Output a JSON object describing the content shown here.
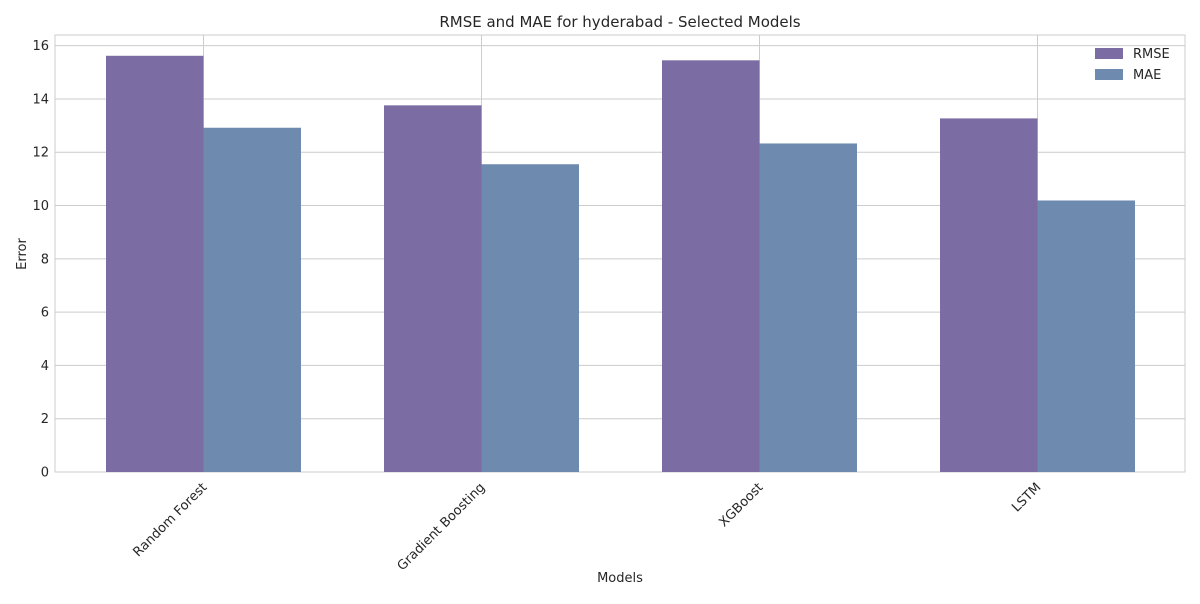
{
  "chart_data": {
    "type": "bar",
    "title": "RMSE and MAE for hyderabad - Selected Models",
    "xlabel": "Models",
    "ylabel": "Error",
    "categories": [
      "Random Forest",
      "Gradient Boosting",
      "XGBoost",
      "LSTM"
    ],
    "series": [
      {
        "name": "RMSE",
        "values": [
          15.62,
          13.76,
          15.45,
          13.27
        ],
        "color": "#7b6ca3"
      },
      {
        "name": "MAE",
        "values": [
          12.92,
          11.55,
          12.33,
          10.19
        ],
        "color": "#6e8baf"
      }
    ],
    "ylim": [
      0,
      16.4
    ],
    "yticks": [
      "0",
      "2",
      "4",
      "6",
      "8",
      "10",
      "12",
      "14",
      "16"
    ],
    "grid": true,
    "legend_position": "top-right"
  }
}
